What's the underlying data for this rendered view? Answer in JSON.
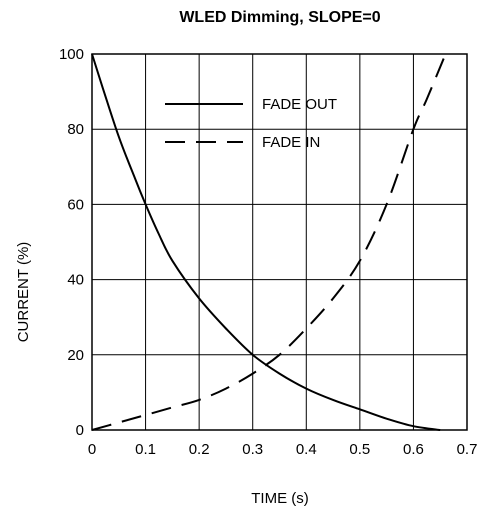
{
  "chart_data": {
    "type": "line",
    "title": "WLED Dimming, SLOPE=0",
    "xlabel": "TIME (s)",
    "ylabel": "CURRENT (%)",
    "xlim": [
      0,
      0.7
    ],
    "ylim": [
      0,
      100
    ],
    "xticks": [
      0,
      0.1,
      0.2,
      0.3,
      0.4,
      0.5,
      0.6,
      0.7
    ],
    "xtick_labels": [
      "0",
      "0.1",
      "0.2",
      "0.3",
      "0.4",
      "0.5",
      "0.6",
      "0.7"
    ],
    "yticks": [
      0,
      20,
      40,
      60,
      80,
      100
    ],
    "ytick_labels": [
      "0",
      "20",
      "40",
      "60",
      "80",
      "100"
    ],
    "grid": true,
    "legend_position": "top-center",
    "series": [
      {
        "name": "FADE OUT",
        "style": "solid",
        "x": [
          0,
          0.02,
          0.05,
          0.08,
          0.1,
          0.125,
          0.15,
          0.2,
          0.25,
          0.3,
          0.35,
          0.4,
          0.45,
          0.5,
          0.55,
          0.6,
          0.65
        ],
        "y": [
          100,
          91,
          78,
          67,
          60,
          52,
          45,
          35,
          27,
          20,
          15,
          11,
          8,
          5.5,
          3,
          1,
          0
        ]
      },
      {
        "name": "FADE IN",
        "style": "dashed",
        "x": [
          0,
          0.05,
          0.1,
          0.15,
          0.2,
          0.25,
          0.3,
          0.35,
          0.4,
          0.45,
          0.5,
          0.55,
          0.6,
          0.625,
          0.66
        ],
        "y": [
          0,
          2,
          4,
          6,
          8,
          11,
          15,
          20,
          27,
          35,
          45,
          60,
          80,
          88,
          100
        ]
      }
    ]
  }
}
